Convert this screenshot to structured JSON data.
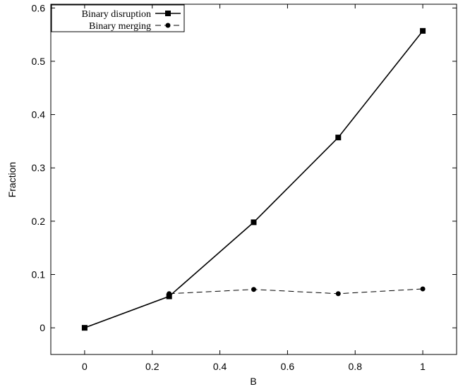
{
  "chart_data": {
    "type": "line",
    "x_label": "B",
    "y_label": "Fraction",
    "x": [
      0,
      0.25,
      0.5,
      0.75,
      1
    ],
    "series": [
      {
        "name": "Binary disruption",
        "color": "#000000",
        "dash": "solid",
        "marker": "square",
        "values": [
          0,
          0.059,
          0.198,
          0.357,
          0.557
        ]
      },
      {
        "name": "Binary merging",
        "color": "#000000",
        "dash": "dashed",
        "marker": "circle",
        "values": [
          null,
          0.064,
          0.072,
          0.064,
          0.073
        ]
      }
    ],
    "xlim": [
      -0.1,
      1.1
    ],
    "ylim": [
      -0.05,
      0.607
    ],
    "xticks": [
      0,
      0.2,
      0.4,
      0.6,
      0.8,
      1
    ],
    "yticks": [
      0,
      0.1,
      0.2,
      0.3,
      0.4,
      0.5,
      0.6
    ],
    "legend": "upper-left",
    "grid": false
  }
}
